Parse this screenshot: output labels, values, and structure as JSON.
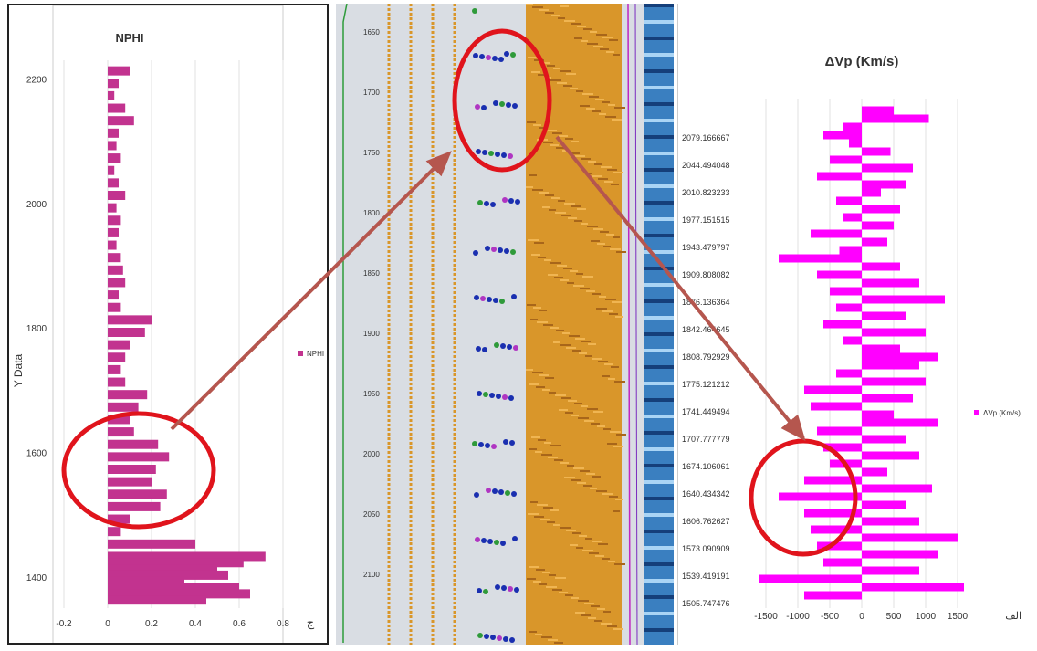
{
  "colors": {
    "nphi": "#c2338f",
    "dvp": "#ff00ff",
    "highlight_circle": "#e0141c",
    "arrow": "#b5564e",
    "fmi_orange": "#d9962a",
    "log_blue": "#3a7fc0"
  },
  "chart_data": [
    {
      "type": "bar",
      "orientation": "horizontal",
      "title": "NPHI",
      "ylabel": "Y Data",
      "yticks": [
        "2200",
        "2000",
        "1800",
        "1600",
        "1400"
      ],
      "xticks": [
        "-0.2",
        "0",
        "0.2",
        "0.4",
        "0.6",
        "0.8"
      ],
      "xlabel_glyph": "ج",
      "xlim": [
        -0.2,
        0.8
      ],
      "ylim": [
        1350,
        2230
      ],
      "legend": {
        "label": "NPHI",
        "placement": "right"
      },
      "series": [
        {
          "name": "NPHI",
          "note_values": "approximate depth-wise profile",
          "points": [
            [
              2210,
              0.1
            ],
            [
              2190,
              0.05
            ],
            [
              2170,
              0.03
            ],
            [
              2150,
              0.08
            ],
            [
              2130,
              0.12
            ],
            [
              2110,
              0.05
            ],
            [
              2090,
              0.04
            ],
            [
              2070,
              0.06
            ],
            [
              2050,
              0.03
            ],
            [
              2030,
              0.05
            ],
            [
              2010,
              0.08
            ],
            [
              1990,
              0.04
            ],
            [
              1970,
              0.06
            ],
            [
              1950,
              0.05
            ],
            [
              1930,
              0.04
            ],
            [
              1910,
              0.06
            ],
            [
              1890,
              0.07
            ],
            [
              1870,
              0.08
            ],
            [
              1850,
              0.05
            ],
            [
              1830,
              0.06
            ],
            [
              1810,
              0.2
            ],
            [
              1790,
              0.17
            ],
            [
              1770,
              0.1
            ],
            [
              1750,
              0.08
            ],
            [
              1730,
              0.06
            ],
            [
              1710,
              0.08
            ],
            [
              1690,
              0.18
            ],
            [
              1670,
              0.14
            ],
            [
              1650,
              0.1
            ],
            [
              1630,
              0.12
            ],
            [
              1610,
              0.23
            ],
            [
              1590,
              0.28
            ],
            [
              1570,
              0.22
            ],
            [
              1550,
              0.2
            ],
            [
              1530,
              0.27
            ],
            [
              1510,
              0.24
            ],
            [
              1490,
              0.1
            ],
            [
              1470,
              0.06
            ],
            [
              1450,
              0.4
            ],
            [
              1430,
              0.72
            ],
            [
              1420,
              0.62
            ],
            [
              1410,
              0.5
            ],
            [
              1400,
              0.55
            ],
            [
              1390,
              0.35
            ],
            [
              1380,
              0.6
            ],
            [
              1370,
              0.65
            ],
            [
              1360,
              0.45
            ]
          ]
        }
      ]
    },
    {
      "type": "bar",
      "orientation": "horizontal",
      "title": "ΔVp (Km/s)",
      "yticks": [
        "2079.166667",
        "2044.494048",
        "2010.823233",
        "1977.151515",
        "1943.479797",
        "1909.808082",
        "1876.136364",
        "1842.464645",
        "1808.792929",
        "1775.121212",
        "1741.449494",
        "1707.777779",
        "1674.106061",
        "1640.434342",
        "1606.762627",
        "1573.090909",
        "1539.419191",
        "1505.747476"
      ],
      "xticks": [
        "-1500",
        "-1000",
        "-500",
        "0",
        "500",
        "1000",
        "1500"
      ],
      "xlabel_glyph": "الف",
      "xlim": [
        -1500,
        1500
      ],
      "legend": {
        "label": "ΔVp (Km/s)",
        "placement": "right"
      },
      "series": [
        {
          "name": "ΔVp (Km/s)",
          "points": [
            [
              2095,
              500
            ],
            [
              2085,
              1050
            ],
            [
              2075,
              -300
            ],
            [
              2065,
              -600
            ],
            [
              2055,
              -200
            ],
            [
              2045,
              450
            ],
            [
              2035,
              -500
            ],
            [
              2025,
              800
            ],
            [
              2015,
              -700
            ],
            [
              2005,
              700
            ],
            [
              1995,
              300
            ],
            [
              1985,
              -400
            ],
            [
              1975,
              600
            ],
            [
              1965,
              -300
            ],
            [
              1955,
              500
            ],
            [
              1945,
              -800
            ],
            [
              1935,
              400
            ],
            [
              1925,
              -350
            ],
            [
              1915,
              -1300
            ],
            [
              1905,
              600
            ],
            [
              1895,
              -700
            ],
            [
              1885,
              900
            ],
            [
              1875,
              -500
            ],
            [
              1865,
              1300
            ],
            [
              1855,
              -400
            ],
            [
              1845,
              700
            ],
            [
              1835,
              -600
            ],
            [
              1825,
              1000
            ],
            [
              1815,
              -300
            ],
            [
              1805,
              600
            ],
            [
              1795,
              1200
            ],
            [
              1785,
              900
            ],
            [
              1775,
              -400
            ],
            [
              1765,
              1000
            ],
            [
              1755,
              -900
            ],
            [
              1745,
              800
            ],
            [
              1735,
              -800
            ],
            [
              1725,
              500
            ],
            [
              1715,
              1200
            ],
            [
              1705,
              -700
            ],
            [
              1695,
              700
            ],
            [
              1685,
              -600
            ],
            [
              1675,
              900
            ],
            [
              1665,
              -500
            ],
            [
              1655,
              400
            ],
            [
              1645,
              -900
            ],
            [
              1635,
              1100
            ],
            [
              1625,
              -1300
            ],
            [
              1615,
              700
            ],
            [
              1605,
              -900
            ],
            [
              1595,
              900
            ],
            [
              1585,
              -800
            ],
            [
              1575,
              1500
            ],
            [
              1565,
              -700
            ],
            [
              1555,
              1200
            ],
            [
              1545,
              -600
            ],
            [
              1535,
              900
            ],
            [
              1525,
              -1600
            ],
            [
              1515,
              1600
            ],
            [
              1505,
              -900
            ]
          ]
        }
      ]
    }
  ]
}
